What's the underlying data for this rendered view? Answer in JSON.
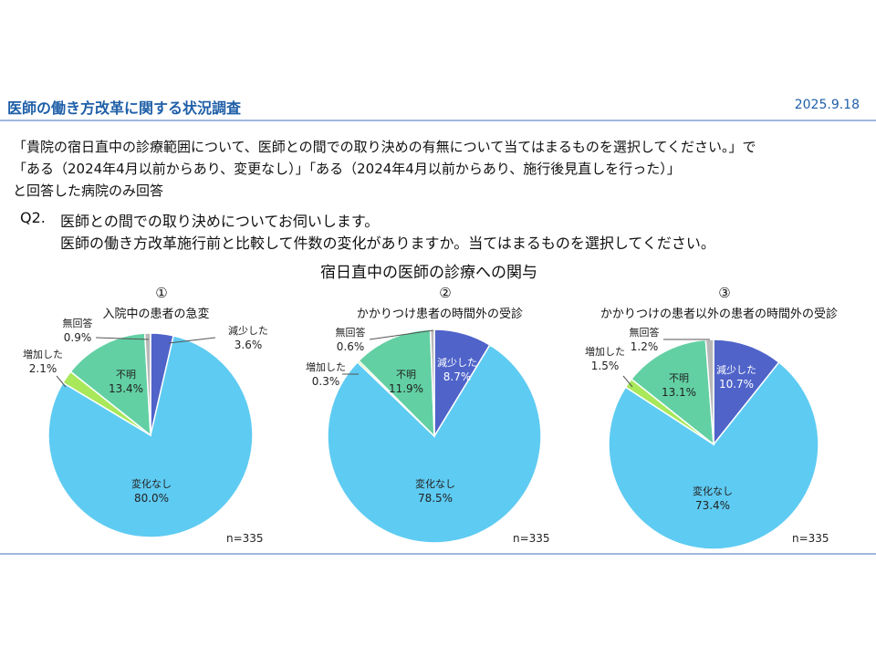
{
  "header": {
    "title": "医師の働き方改革に関する状況調査",
    "date": "2025.9.18"
  },
  "question": {
    "line1": "「貴院の宿日直中の診療範囲について、医師との間での取り決めの有無について当てはまるものを選択してください。」で",
    "line2": "「ある（2024年4月以前からあり、変更なし）」「ある（2024年4月以前からあり、施行後見直しを行った）」",
    "line3": "と回答した病院のみ回答",
    "q_number": "Q2.",
    "q_line1": "医師との間での取り決めについてお伺いします。",
    "q_line2": "医師の働き方改革施行前と比較して件数の変化がありますか。当てはまるものを選択してください。"
  },
  "colors": {
    "減少した": "#4f63c9",
    "変化なし": "#5ecbf2",
    "増加した": "#a8e85a",
    "不明": "#62d0a3",
    "無回答": "#b8b8b8"
  },
  "chart_data": {
    "type": "pie",
    "title": "宿日直中の医師の診療への関与",
    "charts": [
      {
        "number": "①",
        "subtitle": "入院中の患者の急変",
        "n_label": "n=335",
        "slices": [
          {
            "label": "減少した",
            "value": 3.6,
            "display": "3.6%"
          },
          {
            "label": "変化なし",
            "value": 80.0,
            "display": "80.0%"
          },
          {
            "label": "増加した",
            "value": 2.1,
            "display": "2.1%"
          },
          {
            "label": "不明",
            "value": 13.4,
            "display": "13.4%"
          },
          {
            "label": "無回答",
            "value": 0.9,
            "display": "0.9%"
          }
        ]
      },
      {
        "number": "②",
        "subtitle": "かかりつけ患者の時間外の受診",
        "n_label": "n=335",
        "slices": [
          {
            "label": "減少した",
            "value": 8.7,
            "display": "8.7%"
          },
          {
            "label": "変化なし",
            "value": 78.5,
            "display": "78.5%"
          },
          {
            "label": "増加した",
            "value": 0.3,
            "display": "0.3%"
          },
          {
            "label": "不明",
            "value": 11.9,
            "display": "11.9%"
          },
          {
            "label": "無回答",
            "value": 0.6,
            "display": "0.6%"
          }
        ]
      },
      {
        "number": "③",
        "subtitle": "かかりつけの患者以外の患者の時間外の受診",
        "n_label": "n=335",
        "slices": [
          {
            "label": "減少した",
            "value": 10.7,
            "display": "10.7%"
          },
          {
            "label": "変化なし",
            "value": 73.4,
            "display": "73.4%"
          },
          {
            "label": "増加した",
            "value": 1.5,
            "display": "1.5%"
          },
          {
            "label": "不明",
            "value": 13.1,
            "display": "13.1%"
          },
          {
            "label": "無回答",
            "value": 1.2,
            "display": "1.2%"
          }
        ]
      }
    ]
  }
}
